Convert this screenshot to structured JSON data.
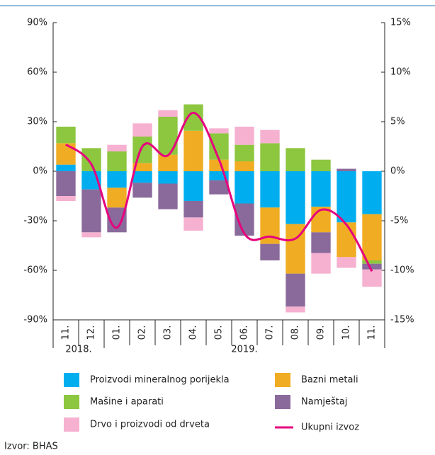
{
  "chart_data": {
    "type": "bar",
    "stacked": true,
    "categories": [
      "11.",
      "12.",
      "01.",
      "02.",
      "03.",
      "04.",
      "05.",
      "06.",
      "07.",
      "08.",
      "09.",
      "10.",
      "11."
    ],
    "year_labels": [
      "2018.",
      "2019."
    ],
    "series": [
      {
        "name": "Proizvodi mineralnog porijekla",
        "color": "#00aeef",
        "values": [
          4,
          -11,
          -10,
          -7,
          -7.5,
          -18,
          -5.5,
          -19.5,
          -22,
          -32,
          -21.5,
          -31,
          -26
        ]
      },
      {
        "name": "Bazni metali",
        "color": "#f0ac22",
        "values": [
          13,
          null,
          -12,
          5,
          10,
          24.5,
          7,
          6,
          -22,
          -30,
          -15.5,
          -21,
          -28
        ]
      },
      {
        "name": "Mašine i aparati",
        "color": "#8dc63f",
        "values": [
          10,
          14,
          12,
          16,
          23,
          16,
          16,
          10,
          17,
          14,
          7,
          null,
          -2
        ]
      },
      {
        "name": "Namještaj",
        "color": "#8a6a9b",
        "values": [
          -15,
          -26,
          -15,
          -9,
          -15.5,
          -10,
          -8.5,
          -19.5,
          -10,
          -20,
          -12.5,
          1.5,
          -3.5
        ]
      },
      {
        "name": "Drvo i proizvodi od drveta",
        "color": "#f6b1d0",
        "values": [
          -3,
          -3,
          4,
          8,
          4,
          -8,
          3,
          11,
          8,
          -3.5,
          -12.5,
          -6.5,
          -10.5
        ]
      },
      {
        "name": "Ukupni izvoz",
        "color": "#e6007e",
        "type": "line",
        "axis": "y2",
        "values": [
          2.7,
          0.7,
          -5.7,
          2.5,
          1.6,
          5.9,
          1.2,
          -6.3,
          -6.6,
          -6.8,
          -3.9,
          -5.4,
          -10.1
        ]
      }
    ],
    "ylim": [
      -90,
      90
    ],
    "yticks": [
      {
        "value": -90,
        "label": "-90%"
      },
      {
        "value": -60,
        "label": "-60%"
      },
      {
        "value": -30,
        "label": "-30%"
      },
      {
        "value": 0,
        "label": "0%"
      },
      {
        "value": 30,
        "label": "30%"
      },
      {
        "value": 60,
        "label": "60%"
      },
      {
        "value": 90,
        "label": "90%"
      }
    ],
    "y2lim": [
      -15,
      15
    ],
    "y2ticks": [
      {
        "value": -15,
        "label": "-15%"
      },
      {
        "value": -10,
        "label": "-10%"
      },
      {
        "value": -5,
        "label": "-5%"
      },
      {
        "value": 0,
        "label": "0%"
      },
      {
        "value": 5,
        "label": "5%"
      },
      {
        "value": 10,
        "label": "10%"
      },
      {
        "value": 15,
        "label": "15%"
      }
    ],
    "source": "Izvor: BHAS"
  }
}
